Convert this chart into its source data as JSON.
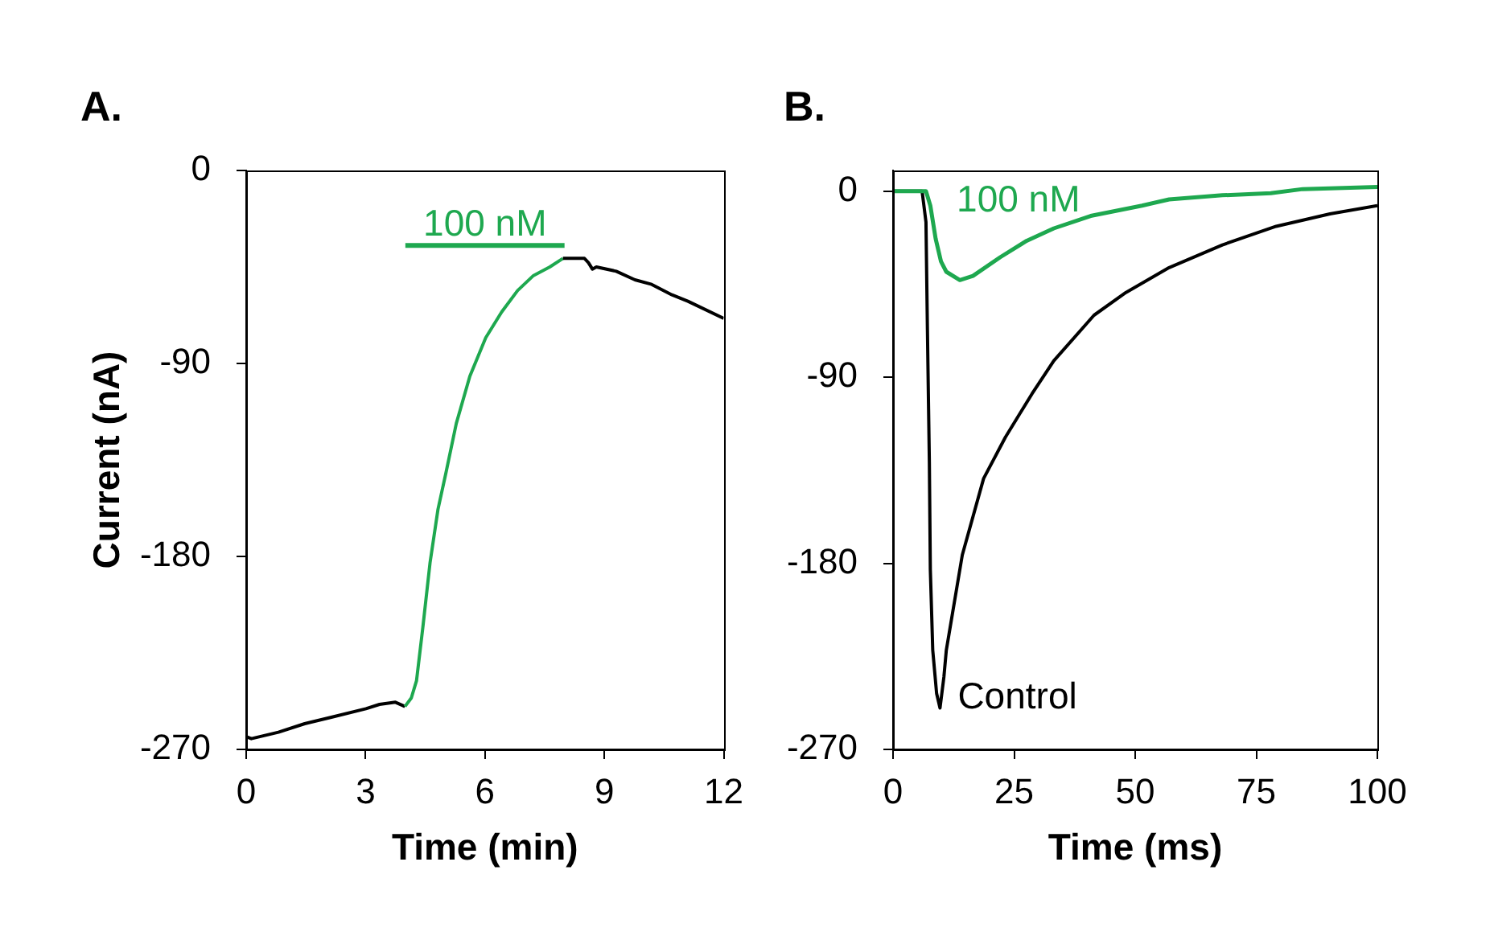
{
  "chart_data": [
    {
      "type": "line",
      "title": "A.",
      "xlabel": "Time (min)",
      "ylabel": "Current (nA)",
      "xlim": [
        0,
        12
      ],
      "xticks": [
        0,
        3,
        6,
        9,
        12
      ],
      "ylim": [
        -270,
        0
      ],
      "yticks": [
        -270,
        -180,
        -90,
        0
      ],
      "grid": false,
      "legend": false,
      "marker": "none",
      "line_style": "solid",
      "series": [
        {
          "color": "#000000",
          "x": [
            0,
            0.13,
            0.81,
            1.47,
            2.14,
            3.01,
            3.35,
            3.75,
            3.99
          ],
          "values": [
            -264,
            -265,
            -262,
            -258,
            -255,
            -251,
            -249,
            -248,
            -250
          ]
        },
        {
          "color": "#1ea84f",
          "x": [
            3.99,
            4.15,
            4.28,
            4.44,
            4.62,
            4.82,
            5.02,
            5.28,
            5.62,
            6.02,
            6.42,
            6.82,
            7.22,
            7.63,
            7.96
          ],
          "values": [
            -250,
            -246,
            -238,
            -213,
            -183,
            -158,
            -141,
            -118,
            -96,
            -78,
            -66,
            -56,
            -49,
            -45,
            -41
          ]
        },
        {
          "color": "#000000",
          "x": [
            7.96,
            8.5,
            8.6,
            8.7,
            8.8,
            9.3,
            9.77,
            10.17,
            10.7,
            11.1,
            12
          ],
          "values": [
            -41,
            -41,
            -43,
            -46,
            -45,
            -47,
            -51,
            -53,
            -58,
            -61,
            -69
          ]
        },
        {
          "name": "100 nM",
          "color": "#1ea84f",
          "x": [
            4,
            8
          ],
          "values": [
            -35,
            -35
          ]
        }
      ]
    },
    {
      "type": "line",
      "title": "B.",
      "xlabel": "Time (ms)",
      "xlim": [
        0,
        100
      ],
      "xticks": [
        0,
        25,
        50,
        75,
        100
      ],
      "ylim": [
        -270,
        10
      ],
      "yticks": [
        -270,
        -180,
        -90,
        0
      ],
      "grid": false,
      "legend": false,
      "marker": "none",
      "line_style": "solid",
      "series": [
        {
          "name": "Control",
          "color": "#000000",
          "x": [
            0,
            6,
            6.8,
            7.1,
            7.5,
            7.7,
            8.2,
            9,
            9.7,
            10.5,
            11,
            14.3,
            18.7,
            23.2,
            28.7,
            33.2,
            41.5,
            48.1,
            57,
            68,
            79.1,
            90.2,
            100
          ],
          "values": [
            0,
            0,
            -15,
            -67,
            -131,
            -183,
            -222,
            -243,
            -250,
            -235,
            -222,
            -176,
            -139,
            -119,
            -98,
            -82,
            -60,
            -49,
            -37,
            -26,
            -17,
            -11,
            -7
          ]
        },
        {
          "name": "100 nM",
          "color": "#1ea84f",
          "x": [
            0,
            6.8,
            7.7,
            8.8,
            9.9,
            11,
            13.8,
            16.5,
            22.1,
            27.6,
            33.2,
            40.8,
            51.4,
            57,
            68,
            78,
            84.6,
            100
          ],
          "values": [
            0,
            0,
            -7,
            -23,
            -34,
            -39,
            -43,
            -41,
            -32,
            -24,
            -18,
            -12,
            -7,
            -4,
            -2,
            -1,
            1,
            2
          ]
        }
      ]
    }
  ]
}
